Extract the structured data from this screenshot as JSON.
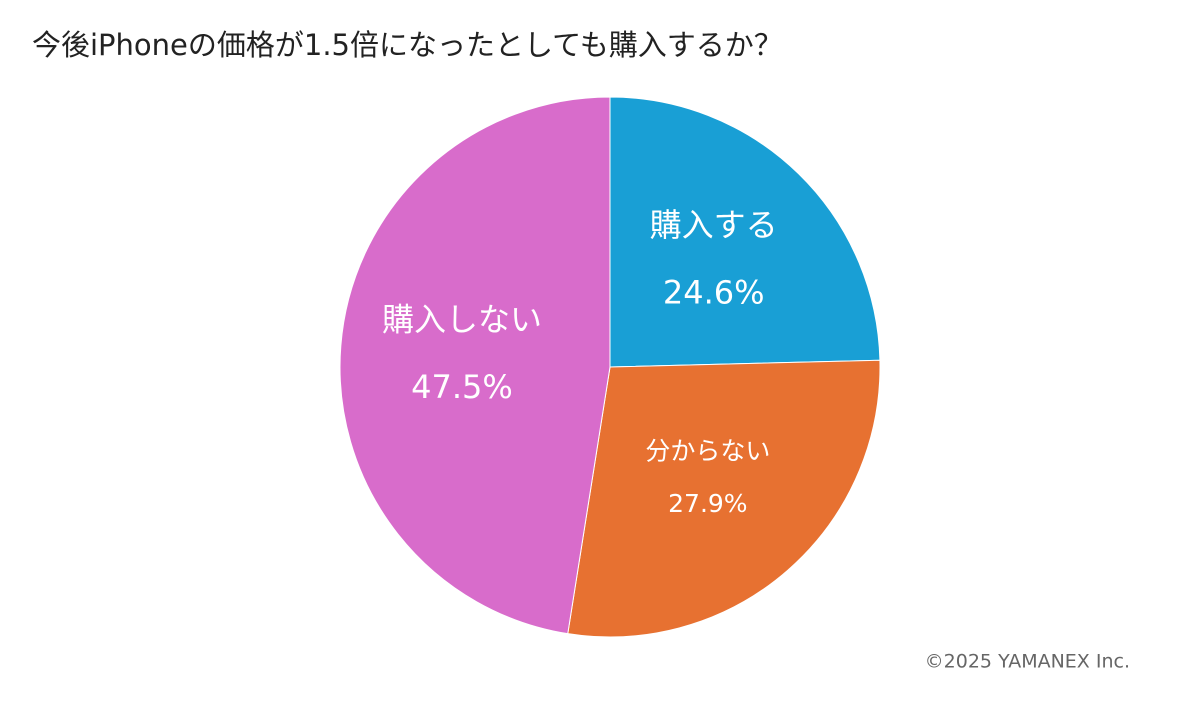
{
  "chart_data": {
    "type": "pie",
    "title": "今後iPhoneの価格が1.5倍になったとしても購入するか？",
    "categories": [
      "購入する",
      "分からない",
      "購入しない"
    ],
    "values": [
      24.6,
      27.9,
      47.5
    ],
    "value_labels": [
      "24.6%",
      "27.9%",
      "47.5%"
    ],
    "colors": [
      "#199fd5",
      "#e77131",
      "#d86ccb"
    ],
    "source": "©2025 YAMANEX Inc."
  }
}
